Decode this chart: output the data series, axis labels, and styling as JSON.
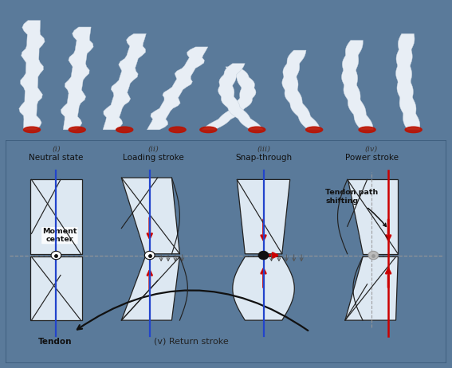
{
  "top_bg_color": "#2e3e4e",
  "bottom_bg_color": "#c0d4e8",
  "outer_border_color": "#5a7a9a",
  "fig_width": 5.67,
  "fig_height": 4.62,
  "labels_roman": [
    "(i)",
    "(ii)",
    "(iii)",
    "(iv)"
  ],
  "labels_text": [
    "Neutral state",
    "Loading stroke",
    "Snap-through",
    "Power stroke"
  ],
  "tendon_color": "#2244cc",
  "red_color": "#cc0000",
  "black_color": "#111111",
  "gray_color": "#777777",
  "panel_fill": "#dde8f2",
  "panel_edge": "#222222",
  "dashed_color": "#999999",
  "return_stroke_text": "(v) Return stroke",
  "tendon_label": "Tendon",
  "moment_center_label": "Moment\ncenter",
  "tendon_path_label": "Tendon path\nshifting"
}
